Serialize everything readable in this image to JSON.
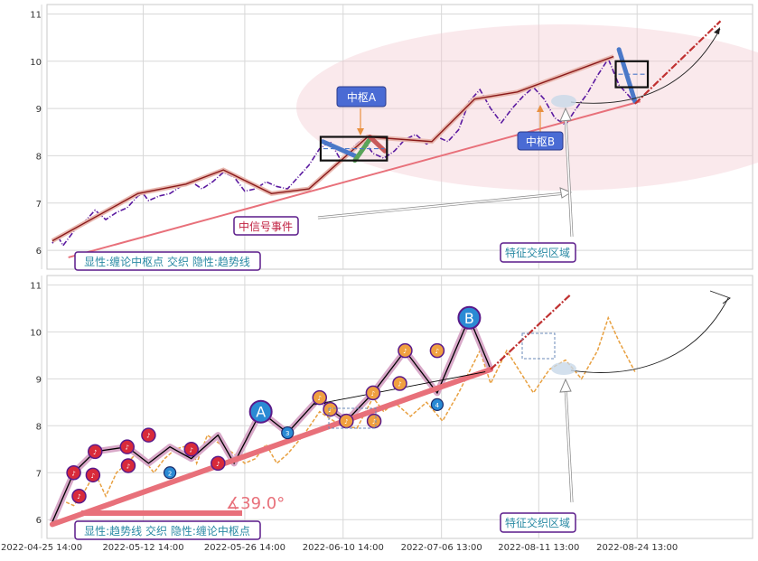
{
  "chart_data": [
    {
      "type": "line",
      "x_ticks": [
        "2022-04-25 14:00",
        "2022-05-12 14:00",
        "2022-05-26 14:00",
        "2022-06-10 14:00",
        "2022-07-06 13:00",
        "2022-08-11 13:00",
        "2022-08-24 13:00"
      ],
      "y_ticks": [
        "6",
        "7",
        "8",
        "9",
        "10",
        "11"
      ],
      "ylim": [
        5.6,
        11.2
      ],
      "grid": true,
      "series": [
        {
          "style": "price-dashdot",
          "color": "#5b1aa0",
          "points": [
            [
              0.5,
              6.15
            ],
            [
              1,
              6.3
            ],
            [
              1.5,
              6.1
            ],
            [
              2.5,
              6.4
            ],
            [
              3.5,
              6.6
            ],
            [
              4.5,
              6.85
            ],
            [
              5.5,
              6.65
            ],
            [
              6.5,
              6.8
            ],
            [
              7.5,
              6.9
            ],
            [
              8.5,
              7.15
            ],
            [
              9,
              7.2
            ],
            [
              9.5,
              7.05
            ],
            [
              10.5,
              7.15
            ],
            [
              11.5,
              7.2
            ],
            [
              12.5,
              7.35
            ],
            [
              13.5,
              7.45
            ],
            [
              14.5,
              7.3
            ],
            [
              15.5,
              7.45
            ],
            [
              16.5,
              7.65
            ],
            [
              17.5,
              7.55
            ],
            [
              18.5,
              7.25
            ],
            [
              19.5,
              7.3
            ],
            [
              20.5,
              7.45
            ],
            [
              21.5,
              7.35
            ],
            [
              22.5,
              7.3
            ],
            [
              23.5,
              7.55
            ],
            [
              24.5,
              7.8
            ],
            [
              25.5,
              8.15
            ],
            [
              26.5,
              8.3
            ],
            [
              27.5,
              7.9
            ],
            [
              28.5,
              8.15
            ],
            [
              29.5,
              8.35
            ],
            [
              30.5,
              8.05
            ],
            [
              31.5,
              7.95
            ],
            [
              32.5,
              8.1
            ],
            [
              33.5,
              8.35
            ],
            [
              34.5,
              8.45
            ],
            [
              35.5,
              8.25
            ],
            [
              36.5,
              8.4
            ],
            [
              37.5,
              8.3
            ],
            [
              38.5,
              8.55
            ],
            [
              39.5,
              9.15
            ],
            [
              40.5,
              9.4
            ],
            [
              41.5,
              9.0
            ],
            [
              42.5,
              8.7
            ],
            [
              43.5,
              9.0
            ],
            [
              44.5,
              9.25
            ],
            [
              45.5,
              9.45
            ],
            [
              46.5,
              9.2
            ],
            [
              47.5,
              8.8
            ],
            [
              48.5,
              8.65
            ],
            [
              49.5,
              9.0
            ],
            [
              50.5,
              9.3
            ],
            [
              51.5,
              9.7
            ],
            [
              52.5,
              10.05
            ],
            [
              53.5,
              9.5
            ],
            [
              54.5,
              9.25
            ],
            [
              55,
              9.1
            ]
          ]
        },
        {
          "style": "trend-brown",
          "color": "#8b1a1a",
          "points": [
            [
              0.5,
              6.2
            ],
            [
              8.5,
              7.2
            ],
            [
              13,
              7.4
            ],
            [
              16.5,
              7.7
            ],
            [
              21,
              7.2
            ],
            [
              24.5,
              7.3
            ],
            [
              30,
              8.4
            ],
            [
              36,
              8.3
            ],
            [
              40,
              9.2
            ],
            [
              44,
              9.35
            ],
            [
              53,
              10.1
            ]
          ]
        },
        {
          "style": "support-line",
          "color": "#e8707a",
          "points": [
            [
              2,
              5.85
            ],
            [
              55.5,
              9.15
            ]
          ]
        },
        {
          "style": "zs-stroke",
          "color": "#4a78c8",
          "points": [
            [
              25.8,
              8.3
            ],
            [
              28.8,
              8.0
            ]
          ]
        },
        {
          "style": "zs-stroke",
          "color": "#5aa45a",
          "points": [
            [
              28.8,
              7.9
            ],
            [
              30.2,
              8.35
            ]
          ]
        },
        {
          "style": "zs-stroke",
          "color": "#c85a5a",
          "points": [
            [
              30.2,
              8.4
            ],
            [
              31.6,
              8.1
            ]
          ]
        },
        {
          "style": "zs-stroke",
          "color": "#4a78c8",
          "points": [
            [
              53.5,
              10.25
            ],
            [
              55,
              9.15
            ]
          ]
        },
        {
          "style": "projection",
          "color": "#c03030",
          "points": [
            [
              55,
              9.1
            ],
            [
              63,
              10.85
            ]
          ]
        }
      ],
      "zhongshu": [
        {
          "x0": 25.6,
          "x1": 31.8,
          "y0": 7.9,
          "y1": 8.4,
          "label": "中枢A"
        },
        {
          "x0": 53.2,
          "x1": 56.2,
          "y0": 9.45,
          "y1": 10.0,
          "label": "中枢B"
        }
      ],
      "annotations": {
        "signal_event": "中信号事件",
        "feature_zone": "特征交织区域",
        "legend_text": "显性:缠论中枢点 交织 隐性:趋势线"
      }
    },
    {
      "type": "line",
      "x_ticks": [
        "2022-04-25 14:00",
        "2022-05-12 14:00",
        "2022-05-26 14:00",
        "2022-06-10 14:00",
        "2022-07-06 13:00",
        "2022-08-11 13:00",
        "2022-08-24 13:00"
      ],
      "y_ticks": [
        "6",
        "7",
        "8",
        "9",
        "10",
        "11"
      ],
      "ylim": [
        5.6,
        11.2
      ],
      "grid": true,
      "trend_angle_label": "∡39.0°",
      "series": [
        {
          "style": "price-orange",
          "color": "#e8a040",
          "points": [
            [
              0.5,
              5.95
            ],
            [
              1.5,
              6.4
            ],
            [
              2.5,
              6.3
            ],
            [
              3.5,
              6.6
            ],
            [
              4.5,
              7.0
            ],
            [
              5.5,
              6.5
            ],
            [
              6.5,
              7.0
            ],
            [
              7.5,
              7.2
            ],
            [
              8.5,
              7.45
            ],
            [
              10,
              7.0
            ],
            [
              11,
              7.3
            ],
            [
              12,
              7.5
            ],
            [
              13.5,
              7.6
            ],
            [
              14,
              7.2
            ],
            [
              15,
              7.8
            ],
            [
              17.5,
              7.4
            ],
            [
              18.5,
              7.2
            ],
            [
              19.5,
              7.3
            ],
            [
              20.5,
              7.6
            ],
            [
              21.5,
              7.2
            ],
            [
              22.5,
              7.4
            ],
            [
              24,
              7.8
            ],
            [
              25.5,
              8.3
            ],
            [
              27.5,
              8.0
            ],
            [
              29,
              7.95
            ],
            [
              30.5,
              8.6
            ],
            [
              31.5,
              8.3
            ],
            [
              32.5,
              8.5
            ],
            [
              34,
              8.2
            ],
            [
              35.5,
              8.5
            ],
            [
              37,
              8.1
            ],
            [
              38.5,
              8.7
            ],
            [
              40.5,
              9.6
            ],
            [
              41.5,
              8.9
            ],
            [
              43,
              9.6
            ],
            [
              45.5,
              8.7
            ],
            [
              47,
              9.2
            ],
            [
              48.5,
              9.4
            ],
            [
              50,
              9.0
            ],
            [
              51.5,
              9.6
            ],
            [
              52.5,
              10.3
            ],
            [
              53.5,
              9.8
            ],
            [
              55,
              9.15
            ]
          ]
        },
        {
          "style": "bi-black",
          "color": "#000000",
          "points": [
            [
              0.5,
              5.95
            ],
            [
              2.5,
              7.0
            ],
            [
              4.5,
              7.45
            ],
            [
              7.5,
              7.55
            ],
            [
              9.5,
              7.2
            ],
            [
              11.5,
              7.55
            ],
            [
              13.5,
              7.3
            ],
            [
              16,
              7.8
            ],
            [
              17.5,
              7.2
            ],
            [
              20,
              8.3
            ],
            [
              22.5,
              7.85
            ],
            [
              25.5,
              8.6
            ],
            [
              26.5,
              8.35
            ],
            [
              28,
              8.1
            ],
            [
              30.5,
              8.7
            ],
            [
              33.5,
              9.6
            ],
            [
              36.5,
              8.7
            ],
            [
              39.5,
              10.3
            ],
            [
              41.5,
              9.2
            ]
          ]
        },
        {
          "style": "support-thick",
          "color": "#e8707a",
          "points": [
            [
              0.5,
              5.9
            ],
            [
              41.5,
              9.2
            ]
          ]
        },
        {
          "style": "hint-line",
          "color": "#000000",
          "points": [
            [
              25,
              8.45
            ],
            [
              41,
              9.15
            ]
          ]
        },
        {
          "style": "projection",
          "color": "#c03030",
          "points": [
            [
              41.5,
              9.2
            ],
            [
              49,
              10.8
            ]
          ]
        }
      ],
      "pivots": [
        {
          "kind": "A",
          "x": 20,
          "y": 8.3,
          "color": "#2a8ad4"
        },
        {
          "kind": "B",
          "x": 39.5,
          "y": 10.3,
          "color": "#2a8ad4"
        }
      ],
      "markers_up": [
        [
          2.5,
          7.0
        ],
        [
          3,
          6.5
        ],
        [
          4.5,
          7.45
        ],
        [
          4.3,
          6.95
        ],
        [
          7.5,
          7.55
        ],
        [
          7.6,
          7.15
        ],
        [
          9.5,
          7.8
        ],
        [
          13.5,
          7.5
        ],
        [
          16,
          7.2
        ],
        [
          25.5,
          8.6
        ],
        [
          26.5,
          8.35
        ],
        [
          28,
          8.1
        ],
        [
          30.5,
          8.7
        ],
        [
          33.5,
          9.6
        ],
        [
          36.5,
          9.6
        ],
        [
          33,
          8.9
        ],
        [
          30.6,
          8.1
        ]
      ],
      "markers_down": [
        [
          11.5,
          7.0
        ],
        [
          22.5,
          7.85
        ],
        [
          36.5,
          8.45
        ]
      ],
      "annotations": {
        "feature_zone": "特征交织区域",
        "legend_text": "显性:趋势线 交织 隐性:缠论中枢点"
      }
    }
  ]
}
